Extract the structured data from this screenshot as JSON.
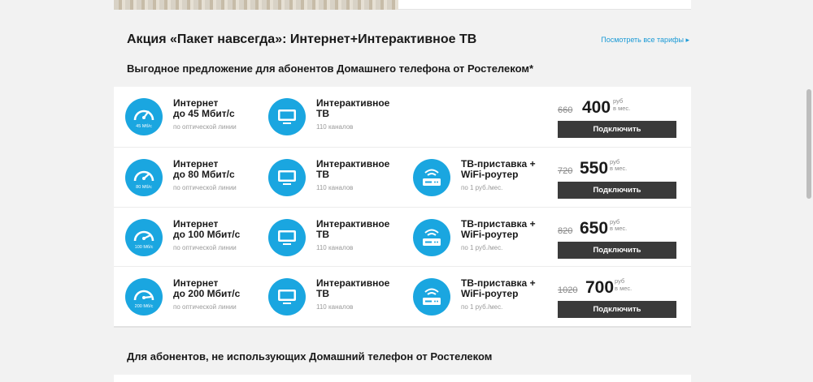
{
  "header": {
    "title": "Акция «Пакет навсегда»: Интернет+Интерактивное ТВ",
    "all_tariffs_link": "Посмотреть все тарифы ▸",
    "subtitle": "Выгодное предложение для абонентов Домашнего телефона от Ростелеком*"
  },
  "accent_color": "#1aa6e0",
  "button_color": "#3a3a3a",
  "tariffs": [
    {
      "internet": {
        "name1": "Интернет",
        "name2": "до 45 Мбит/с",
        "note": "по оптической линии",
        "speed_badge": "45 Мб/с",
        "icon": "speedometer-icon"
      },
      "tv": {
        "name1": "Интерактивное",
        "name2": "ТВ",
        "note": "110 каналов",
        "icon": "tv-icon"
      },
      "old_price": "660",
      "price": "400",
      "unit1": "руб",
      "unit2": "в мес.",
      "button": "Подключить"
    },
    {
      "internet": {
        "name1": "Интернет",
        "name2": "до 80 Мбит/с",
        "note": "по оптической линии",
        "speed_badge": "80 Мб/с",
        "icon": "speedometer-icon"
      },
      "tv": {
        "name1": "Интерактивное",
        "name2": "ТВ",
        "note": "110 каналов",
        "icon": "tv-icon"
      },
      "router": {
        "name1": "ТВ-приставка +",
        "name2": "WiFi-роутер",
        "note": "по 1 руб./мес.",
        "icon": "router-icon"
      },
      "old_price": "720",
      "price": "550",
      "unit1": "руб",
      "unit2": "в мес.",
      "button": "Подключить"
    },
    {
      "internet": {
        "name1": "Интернет",
        "name2": "до 100 Мбит/с",
        "note": "по оптической линии",
        "speed_badge": "100 Мб/с",
        "icon": "speedometer-icon"
      },
      "tv": {
        "name1": "Интерактивное",
        "name2": "ТВ",
        "note": "110 каналов",
        "icon": "tv-icon"
      },
      "router": {
        "name1": "ТВ-приставка +",
        "name2": "WiFi-роутер",
        "note": "по 1 руб./мес.",
        "icon": "router-icon"
      },
      "old_price": "820",
      "price": "650",
      "unit1": "руб",
      "unit2": "в мес.",
      "button": "Подключить"
    },
    {
      "internet": {
        "name1": "Интернет",
        "name2": "до 200 Мбит/с",
        "note": "по оптической линии",
        "speed_badge": "200 Мб/с",
        "icon": "speedometer-icon"
      },
      "tv": {
        "name1": "Интерактивное",
        "name2": "ТВ",
        "note": "110 каналов",
        "icon": "tv-icon"
      },
      "router": {
        "name1": "ТВ-приставка +",
        "name2": "WiFi-роутер",
        "note": "по 1 руб./мес.",
        "icon": "router-icon"
      },
      "old_price": "1020",
      "price": "700",
      "unit1": "руб",
      "unit2": "в мес.",
      "button": "Подключить"
    }
  ],
  "bottom": {
    "title": "Для абонентов, не использующих Домашний телефон от Ростелеком"
  }
}
